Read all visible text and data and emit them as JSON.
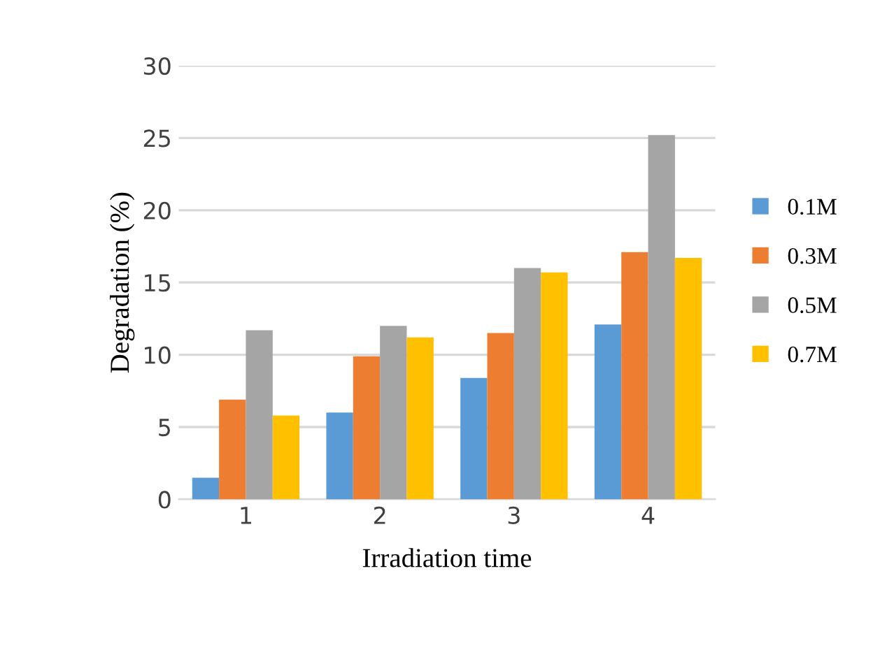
{
  "chart_data": {
    "type": "bar",
    "xlabel": "Irradiation time",
    "ylabel": "Degradation (%)",
    "categories": [
      "1",
      "2",
      "3",
      "4"
    ],
    "series": [
      {
        "name": "0.1M",
        "color": "#5b9bd5",
        "values": [
          1.5,
          6.0,
          8.4,
          12.1
        ]
      },
      {
        "name": "0.3M",
        "color": "#ed7d31",
        "values": [
          6.9,
          9.9,
          11.5,
          17.1
        ]
      },
      {
        "name": "0.5M",
        "color": "#a5a5a5",
        "values": [
          11.7,
          12.0,
          16.0,
          25.2
        ]
      },
      {
        "name": "0.7M",
        "color": "#ffc000",
        "values": [
          5.8,
          11.2,
          15.7,
          16.7
        ]
      }
    ],
    "ylim": [
      0,
      30
    ],
    "yticks": [
      0,
      5,
      10,
      15,
      20,
      25,
      30
    ],
    "grid": "y",
    "legend": "right"
  }
}
